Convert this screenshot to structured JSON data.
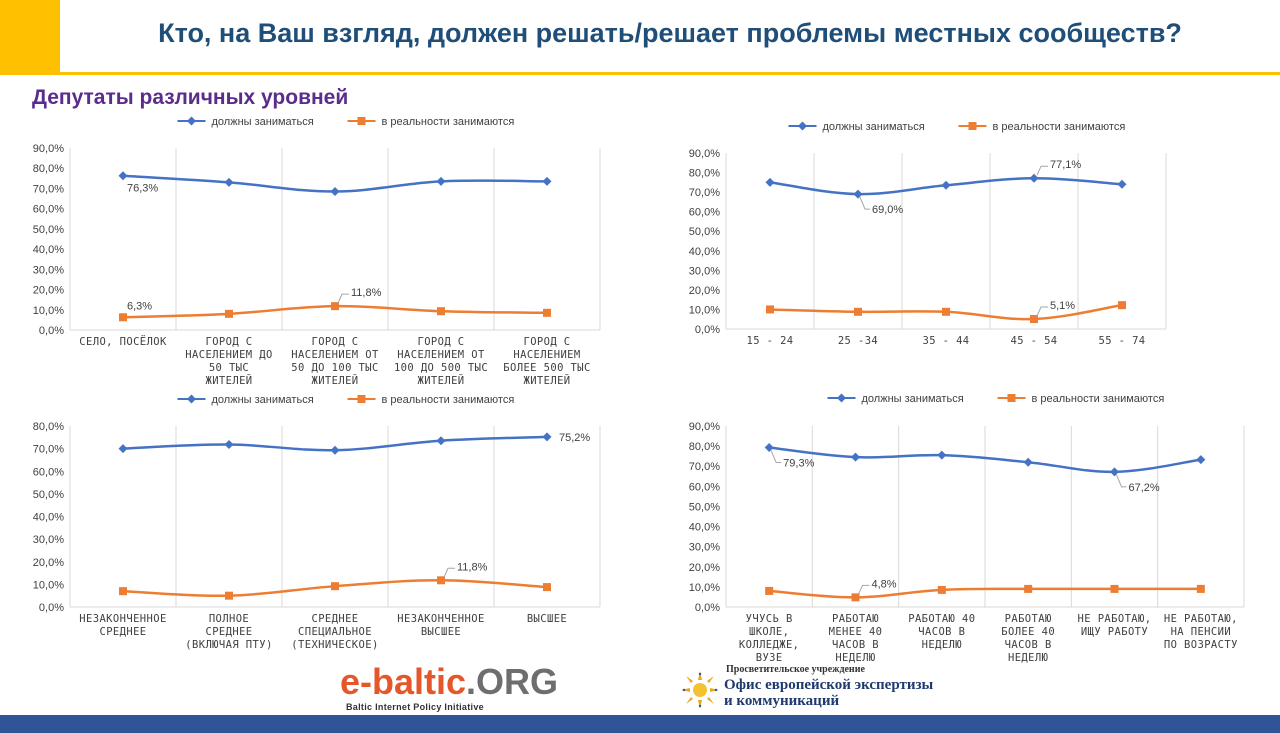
{
  "slide": {
    "title": "Кто, на Ваш взгляд, должен решать/решает проблемы местных сообществ?",
    "subtitle": "Депутаты различных уровней",
    "colors": {
      "accent": "#FFC000",
      "title": "#1F4E79",
      "subtitle": "#5B2C8B",
      "footer": "#2F5597"
    }
  },
  "logos": {
    "ebaltic": {
      "name": "e-baltic",
      "domain": ".ORG",
      "tagline": "Baltic Internet Policy Initiative"
    },
    "office": {
      "small": "Просветительское учреждение",
      "line1": "Офис европейской экспертизы",
      "line2": "и коммуникаций",
      "icon": "sun-emblem-icon"
    }
  },
  "chart_data": [
    {
      "type": "line",
      "legend_position": "top",
      "grid": "vertical",
      "ylim": [
        0,
        90
      ],
      "yticks": [
        "0,0%",
        "10,0%",
        "20,0%",
        "30,0%",
        "40,0%",
        "50,0%",
        "60,0%",
        "70,0%",
        "80,0%",
        "90,0%"
      ],
      "categories": [
        [
          "СЕЛО, ПОСЁЛОК"
        ],
        [
          "ГОРОД С",
          "НАСЕЛЕНИЕМ ДО",
          "50 ТЫС",
          "ЖИТЕЛЕЙ"
        ],
        [
          "ГОРОД С",
          "НАСЕЛЕНИЕМ ОТ",
          "50 ДО 100 ТЫС",
          "ЖИТЕЛЕЙ"
        ],
        [
          "ГОРОД С",
          "НАСЕЛЕНИЕМ ОТ",
          "100 ДО 500 ТЫС",
          "ЖИТЕЛЕЙ"
        ],
        [
          "ГОРОД С",
          "НАСЕЛЕНИЕМ",
          "БОЛЕЕ 500 ТЫС",
          "ЖИТЕЛЕЙ"
        ]
      ],
      "series": [
        {
          "name": "должны заниматься",
          "color": "#4472C4",
          "marker": "diamond",
          "values": [
            76.3,
            73.0,
            68.5,
            73.5,
            73.5
          ],
          "labels": [
            {
              "i": 0,
              "text": "76,3%",
              "pos": "below"
            }
          ]
        },
        {
          "name": "в реальности занимаются",
          "color": "#ED7D31",
          "marker": "square",
          "values": [
            6.3,
            8.0,
            11.8,
            9.3,
            8.5
          ],
          "labels": [
            {
              "i": 0,
              "text": "6,3%",
              "pos": "above"
            },
            {
              "i": 2,
              "text": "11,8%",
              "pos": "callout-right"
            }
          ]
        }
      ]
    },
    {
      "type": "line",
      "legend_position": "top",
      "grid": "vertical",
      "ylim": [
        0,
        90
      ],
      "yticks": [
        "0,0%",
        "10,0%",
        "20,0%",
        "30,0%",
        "40,0%",
        "50,0%",
        "60,0%",
        "70,0%",
        "80,0%",
        "90,0%"
      ],
      "categories": [
        [
          "15 - 24"
        ],
        [
          "25 -34"
        ],
        [
          "35 - 44"
        ],
        [
          "45 - 54"
        ],
        [
          "55 - 74"
        ]
      ],
      "series": [
        {
          "name": "должны заниматься",
          "color": "#4472C4",
          "marker": "diamond",
          "values": [
            75.0,
            69.0,
            73.5,
            77.1,
            74.0
          ],
          "labels": [
            {
              "i": 1,
              "text": "69,0%",
              "pos": "callout-below"
            },
            {
              "i": 3,
              "text": "77,1%",
              "pos": "callout-right"
            }
          ]
        },
        {
          "name": "в реальности занимаются",
          "color": "#ED7D31",
          "marker": "square",
          "values": [
            10.0,
            8.8,
            8.8,
            5.1,
            12.2
          ],
          "labels": [
            {
              "i": 3,
              "text": "5,1%",
              "pos": "callout-right"
            }
          ]
        }
      ]
    },
    {
      "type": "line",
      "legend_position": "top",
      "grid": "vertical",
      "ylim": [
        0,
        80
      ],
      "yticks": [
        "0,0%",
        "10,0%",
        "20,0%",
        "30,0%",
        "40,0%",
        "50,0%",
        "60,0%",
        "70,0%",
        "80,0%"
      ],
      "categories": [
        [
          "НЕЗАКОНЧЕННОЕ",
          "СРЕДНЕЕ"
        ],
        [
          "ПОЛНОЕ",
          "СРЕДНЕЕ",
          "(ВКЛЮЧАЯ ПТУ)"
        ],
        [
          "СРЕДНЕЕ",
          "СПЕЦИАЛЬНОЕ",
          "(ТЕХНИЧЕСКОЕ)"
        ],
        [
          "НЕЗАКОНЧЕННОЕ",
          "ВЫСШЕЕ"
        ],
        [
          "ВЫСШЕЕ"
        ]
      ],
      "series": [
        {
          "name": "должны заниматься",
          "color": "#4472C4",
          "marker": "diamond",
          "values": [
            70.0,
            71.8,
            69.3,
            73.5,
            75.2
          ],
          "labels": [
            {
              "i": 4,
              "text": "75,2%",
              "pos": "right"
            }
          ]
        },
        {
          "name": "в реальности занимаются",
          "color": "#ED7D31",
          "marker": "square",
          "values": [
            7.0,
            5.0,
            9.2,
            11.8,
            8.8
          ],
          "labels": [
            {
              "i": 3,
              "text": "11,8%",
              "pos": "callout-right"
            }
          ]
        }
      ]
    },
    {
      "type": "line",
      "legend_position": "top",
      "grid": "vertical",
      "ylim": [
        0,
        90
      ],
      "yticks": [
        "0,0%",
        "10,0%",
        "20,0%",
        "30,0%",
        "40,0%",
        "50,0%",
        "60,0%",
        "70,0%",
        "80,0%",
        "90,0%"
      ],
      "categories": [
        [
          "УЧУСЬ В",
          "ШКОЛЕ,",
          "КОЛЛЕДЖЕ,",
          "ВУЗЕ"
        ],
        [
          "РАБОТАЮ",
          "МЕНЕЕ 40",
          "ЧАСОВ В",
          "НЕДЕЛЮ"
        ],
        [
          "РАБОТАЮ 40",
          "ЧАСОВ В",
          "НЕДЕЛЮ"
        ],
        [
          "РАБОТАЮ",
          "БОЛЕЕ 40",
          "ЧАСОВ В",
          "НЕДЕЛЮ"
        ],
        [
          "НЕ РАБОТАЮ,",
          "ИЩУ РАБОТУ"
        ],
        [
          "НЕ РАБОТАЮ,",
          "НА ПЕНСИИ",
          "ПО ВОЗРАСТУ"
        ]
      ],
      "series": [
        {
          "name": "должны заниматься",
          "color": "#4472C4",
          "marker": "diamond",
          "values": [
            79.3,
            74.5,
            75.5,
            72.0,
            67.2,
            73.3
          ],
          "labels": [
            {
              "i": 0,
              "text": "79,3%",
              "pos": "callout-below"
            },
            {
              "i": 4,
              "text": "67,2%",
              "pos": "callout-below"
            }
          ]
        },
        {
          "name": "в реальности занимаются",
          "color": "#ED7D31",
          "marker": "square",
          "values": [
            8.0,
            4.8,
            8.5,
            9.0,
            9.0,
            9.0
          ],
          "labels": [
            {
              "i": 1,
              "text": "4,8%",
              "pos": "callout-right"
            }
          ]
        }
      ]
    }
  ]
}
